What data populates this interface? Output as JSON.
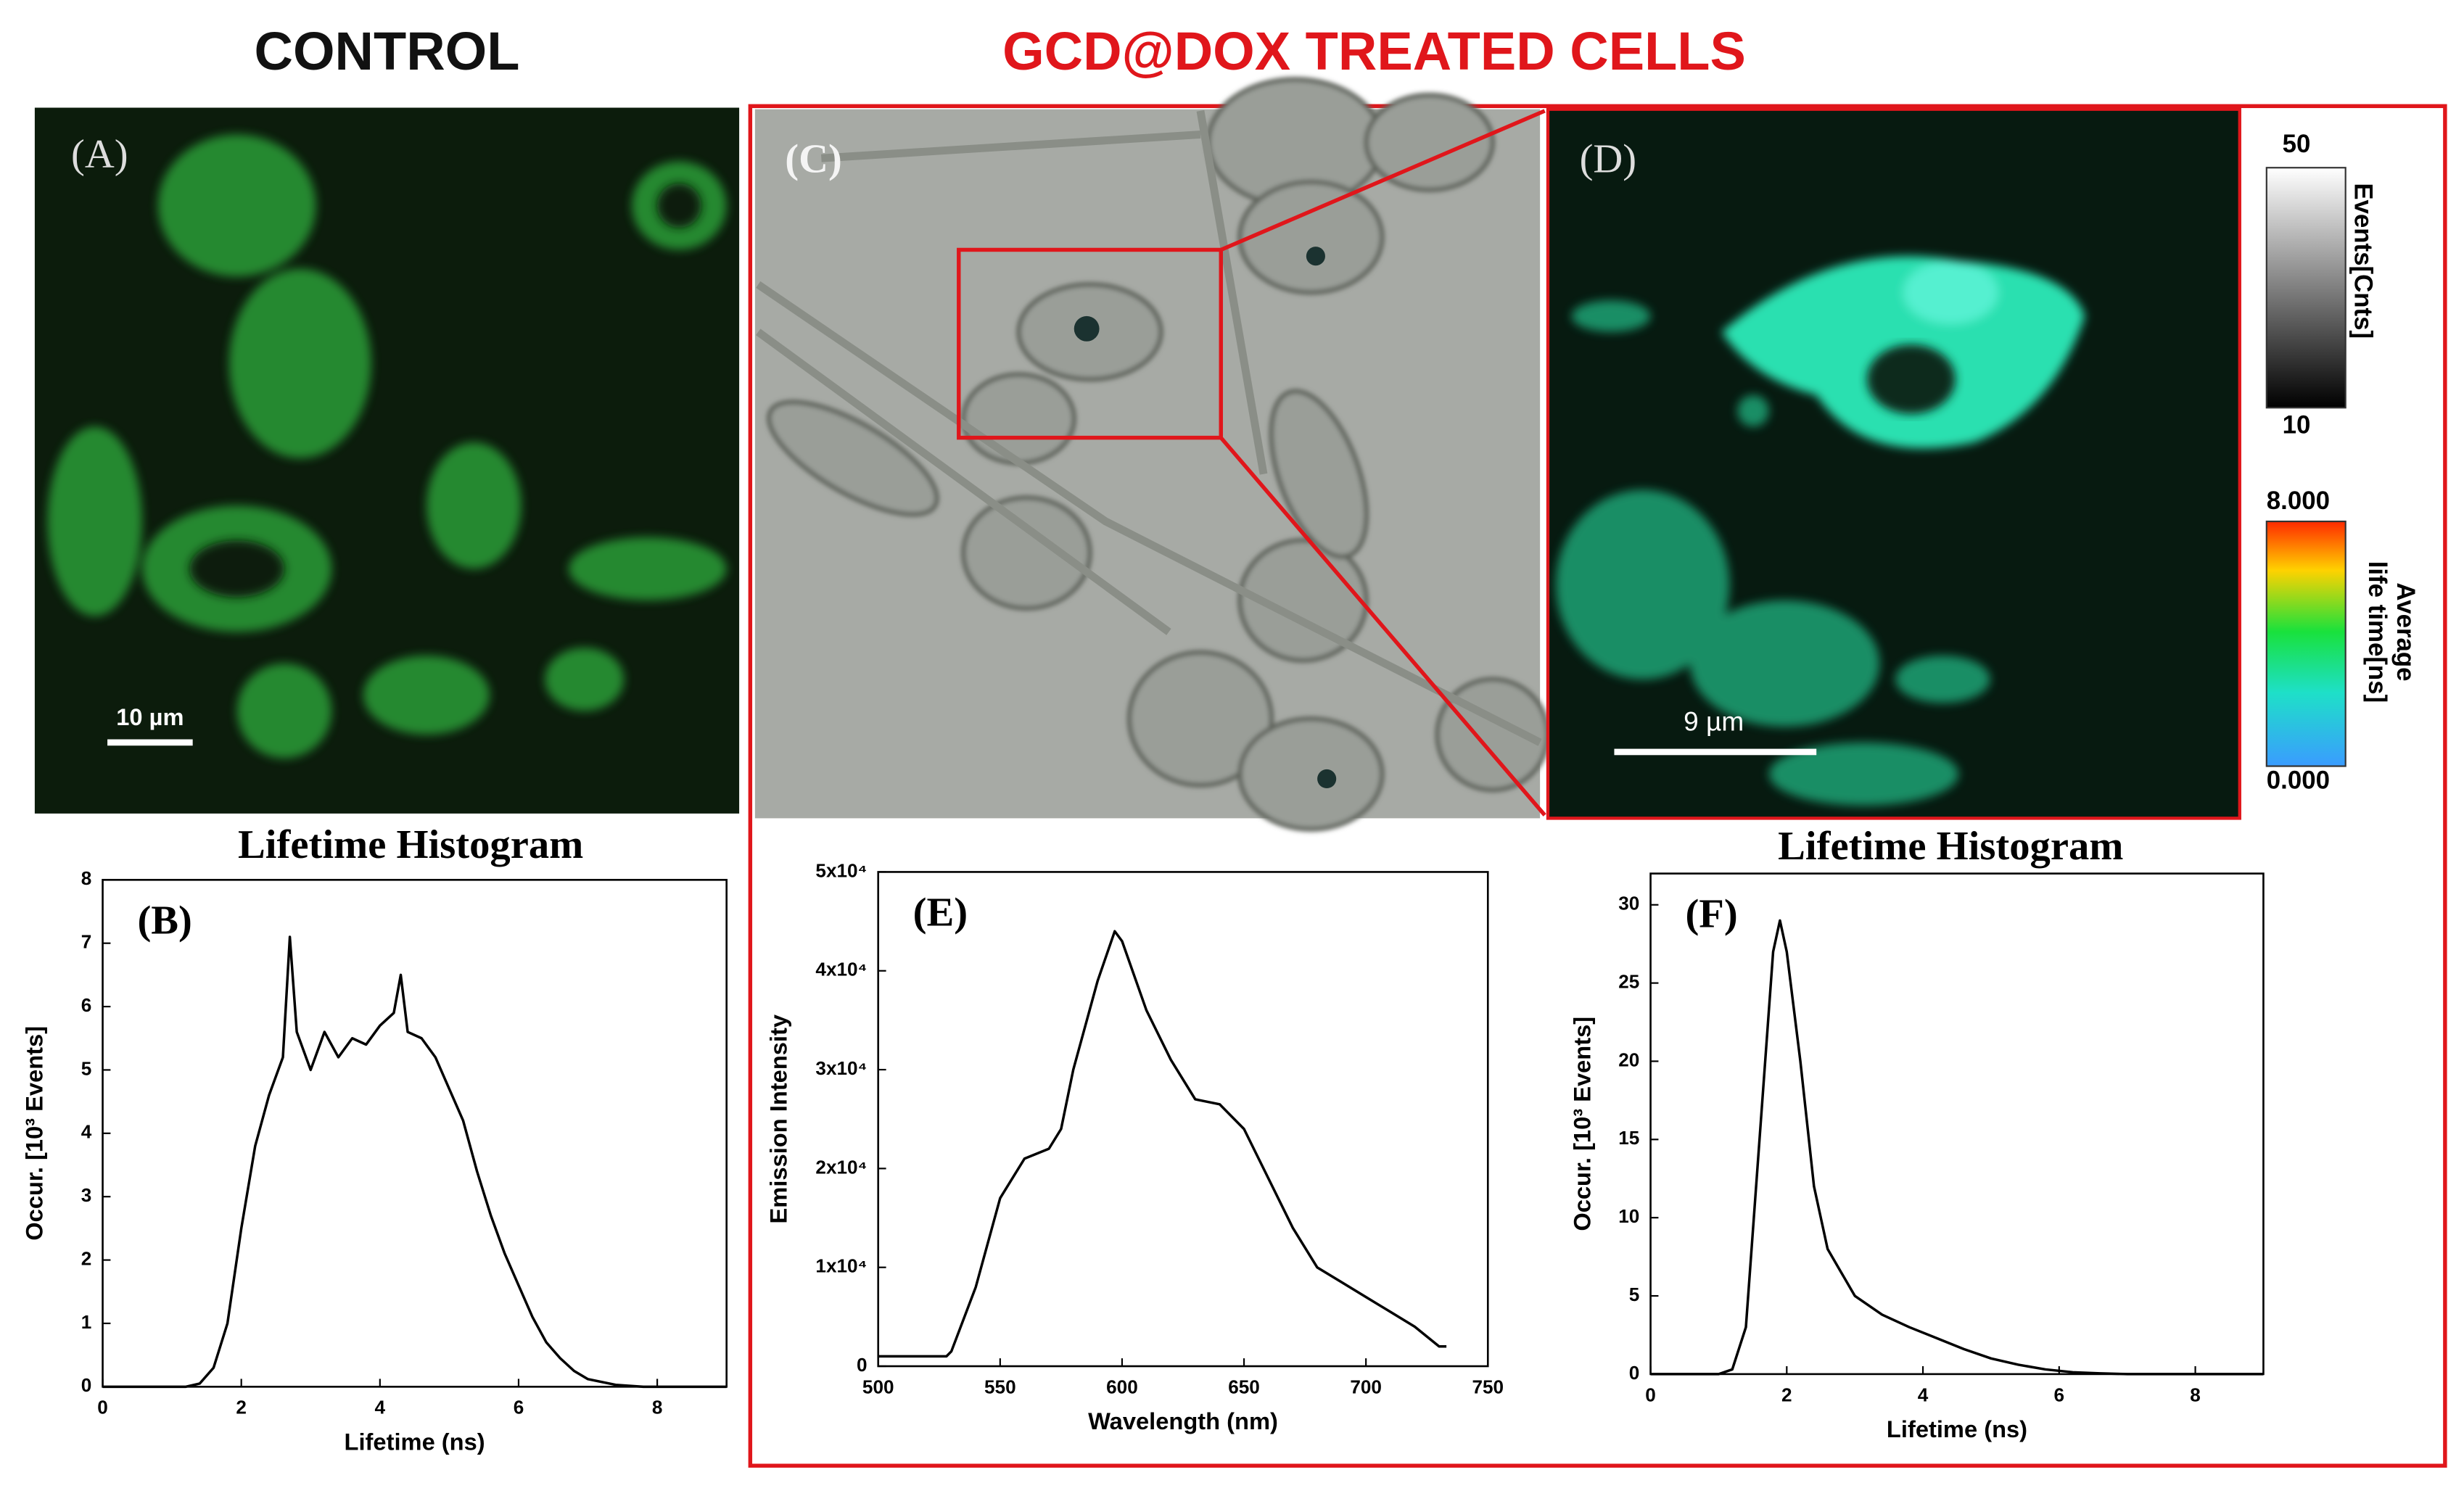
{
  "headings": {
    "control": "CONTROL",
    "treated": "GCD@DOX TREATED CELLS"
  },
  "panels": {
    "A": {
      "label": "(A)",
      "scale_bar": "10 µm"
    },
    "C": {
      "label": "(C)"
    },
    "D": {
      "label": "(D)",
      "scale_bar": "9 µm"
    }
  },
  "colorbars": [
    {
      "top": "50",
      "bottom": "10",
      "label": [
        "Events[Cnts]"
      ]
    },
    {
      "top": "8.000",
      "bottom": "0.000",
      "label": [
        "Average",
        "life time[ns]"
      ]
    }
  ],
  "chart_data": [
    {
      "type": "line",
      "panel_label": "(B)",
      "title": "Lifetime Histogram",
      "xlabel": "Lifetime (ns)",
      "ylabel": "Occur. [10³ Events]",
      "color": "#000000",
      "x": [
        0,
        1.2,
        1.4,
        1.6,
        1.8,
        2.0,
        2.2,
        2.4,
        2.6,
        2.7,
        2.8,
        3.0,
        3.2,
        3.4,
        3.6,
        3.8,
        4.0,
        4.2,
        4.3,
        4.4,
        4.6,
        4.8,
        5.0,
        5.2,
        5.4,
        5.6,
        5.8,
        6.0,
        6.2,
        6.4,
        6.6,
        6.8,
        7.0,
        7.4,
        7.8,
        9.0
      ],
      "values": [
        0,
        0,
        0.05,
        0.3,
        1.0,
        2.5,
        3.8,
        4.6,
        5.2,
        7.1,
        5.6,
        5.0,
        5.6,
        5.2,
        5.5,
        5.4,
        5.7,
        5.9,
        6.5,
        5.6,
        5.5,
        5.2,
        4.7,
        4.2,
        3.4,
        2.7,
        2.1,
        1.6,
        1.1,
        0.7,
        0.45,
        0.25,
        0.12,
        0.03,
        0,
        0
      ],
      "xlim": [
        0,
        9
      ],
      "xticks": [
        0,
        2,
        4,
        6,
        8
      ],
      "ylim": [
        0,
        8
      ],
      "yticks": [
        0,
        1,
        2,
        3,
        4,
        5,
        6,
        7,
        8
      ]
    },
    {
      "type": "line",
      "panel_label": "(E)",
      "xlabel": "Wavelength (nm)",
      "ylabel": "Emission Intensity",
      "color": "#000000",
      "x": [
        500,
        528,
        530,
        540,
        550,
        560,
        570,
        575,
        580,
        590,
        597,
        600,
        610,
        620,
        630,
        640,
        650,
        660,
        670,
        680,
        690,
        700,
        710,
        720,
        730,
        733
      ],
      "values": [
        1000,
        1000,
        1500,
        8000,
        17000,
        21000,
        22000,
        24000,
        30000,
        39000,
        44000,
        43000,
        36000,
        31000,
        27000,
        26500,
        24000,
        19000,
        14000,
        10000,
        8500,
        7000,
        5500,
        4000,
        2000,
        2000
      ],
      "xlim": [
        500,
        750
      ],
      "xticks": [
        500,
        550,
        600,
        650,
        700,
        750
      ],
      "ylim": [
        0,
        50000
      ],
      "yticks": [
        0,
        {
          "value": 10000,
          "label": "1x10⁴"
        },
        {
          "value": 20000,
          "label": "2x10⁴"
        },
        {
          "value": 30000,
          "label": "3x10⁴"
        },
        {
          "value": 40000,
          "label": "4x10⁴"
        },
        {
          "value": 50000,
          "label": "5x10⁴"
        }
      ]
    },
    {
      "type": "line",
      "panel_label": "(F)",
      "title": "Lifetime Histogram",
      "xlabel": "Lifetime (ns)",
      "ylabel": "Occur. [10³ Events]",
      "color": "#000000",
      "x": [
        0,
        1.0,
        1.2,
        1.4,
        1.6,
        1.8,
        1.9,
        2.0,
        2.2,
        2.4,
        2.6,
        2.8,
        3.0,
        3.4,
        3.8,
        4.2,
        4.6,
        5.0,
        5.4,
        5.8,
        6.2,
        6.6,
        7.0,
        9.0
      ],
      "values": [
        0,
        0,
        0.3,
        3,
        15,
        27,
        29,
        27,
        20,
        12,
        8,
        6.5,
        5,
        3.8,
        3,
        2.3,
        1.6,
        1,
        0.6,
        0.3,
        0.12,
        0.05,
        0,
        0
      ],
      "xlim": [
        0,
        9
      ],
      "xticks": [
        0,
        2,
        4,
        6,
        8
      ],
      "ylim": [
        0,
        32
      ],
      "yticks": [
        0,
        5,
        10,
        15,
        20,
        25,
        30
      ]
    }
  ]
}
